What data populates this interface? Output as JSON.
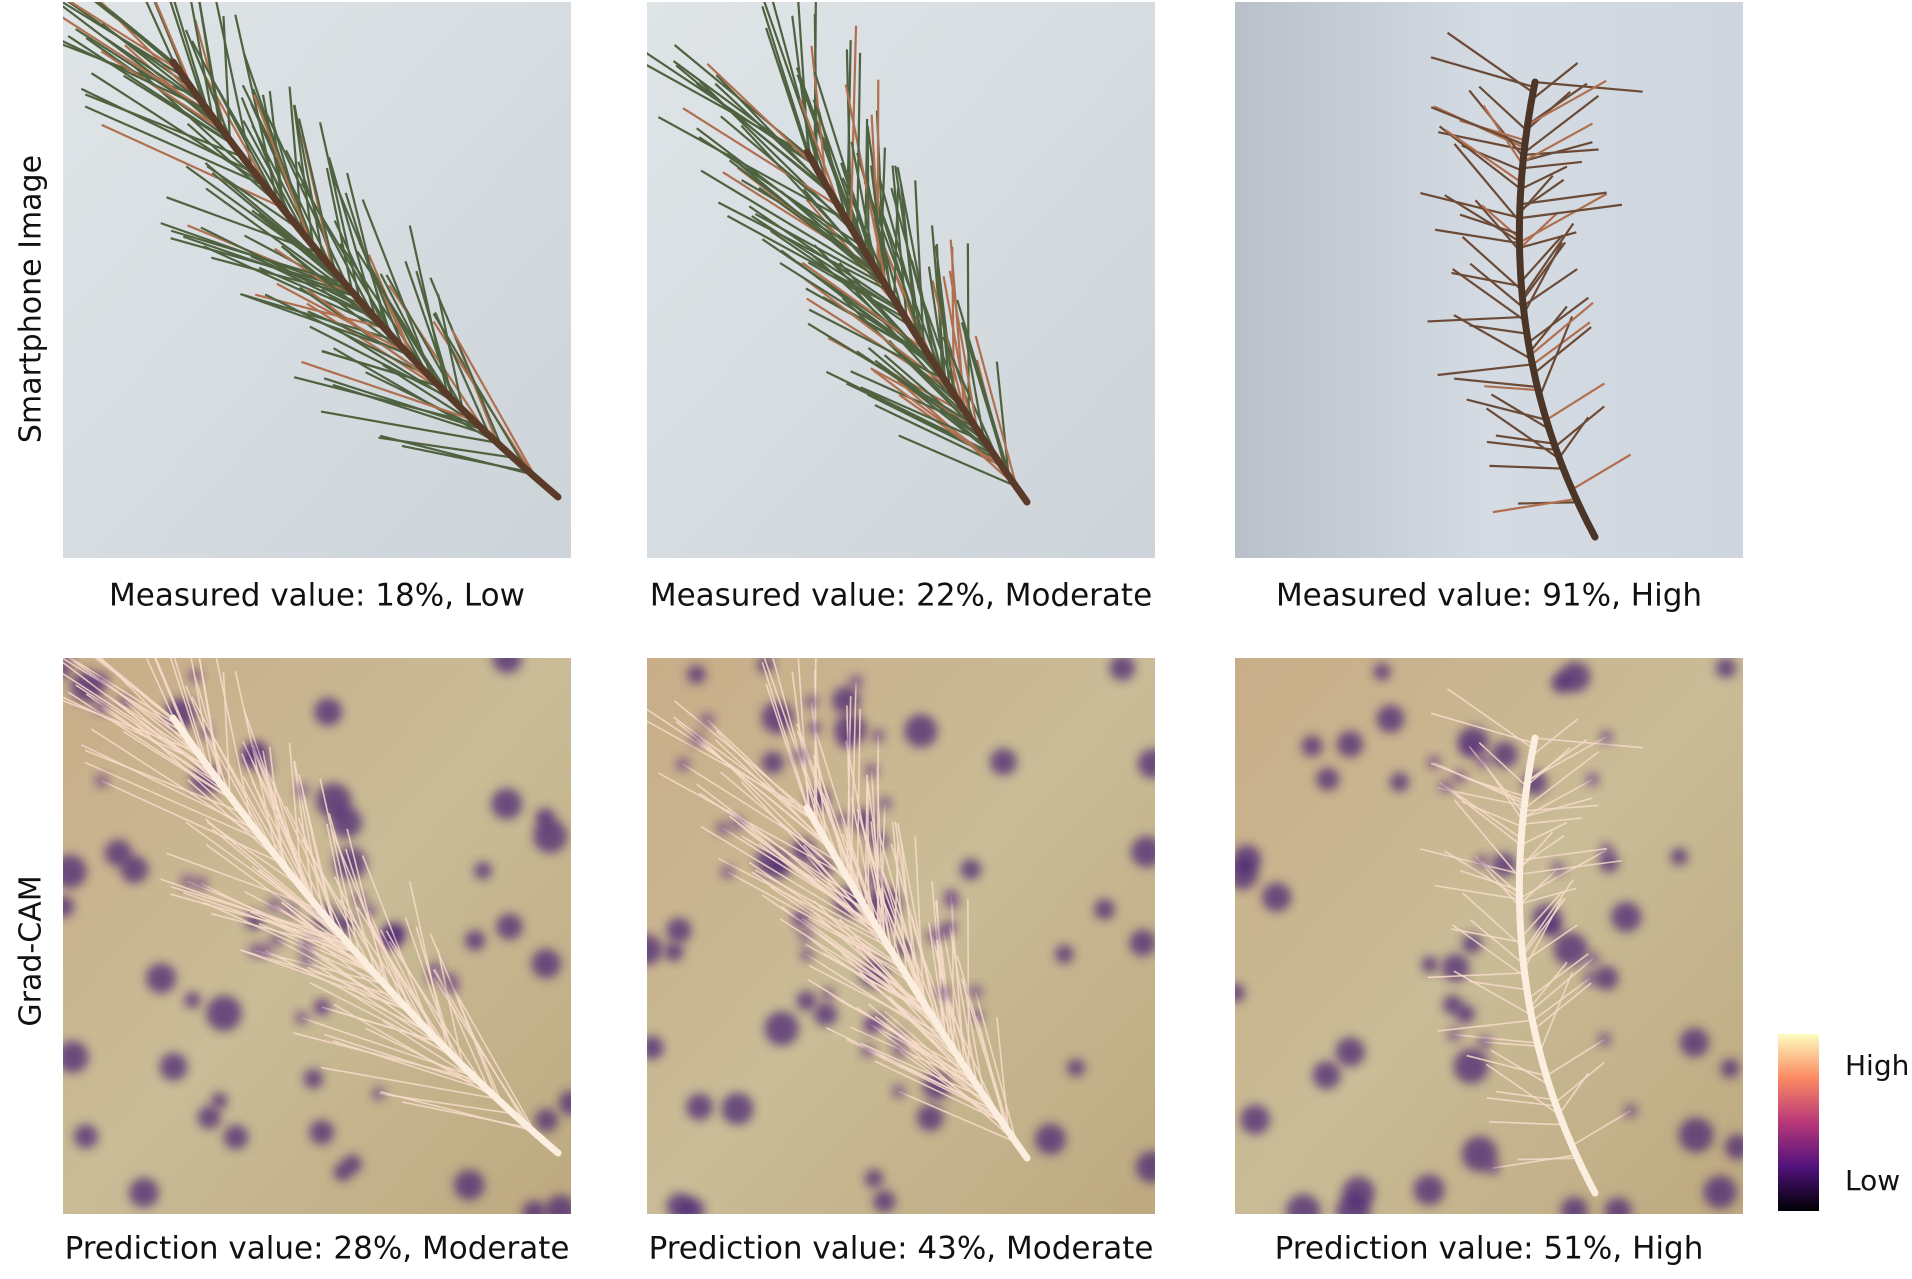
{
  "rows": [
    {
      "label": "Smartphone Image",
      "captions": [
        "Measured value: 18%, Low",
        "Measured value: 22%, Moderate",
        "Measured value: 91%, High"
      ]
    },
    {
      "label": "Grad-CAM",
      "captions": [
        "Prediction value: 28%, Moderate",
        "Prediction value: 43%, Moderate",
        "Prediction value: 51%, High"
      ]
    }
  ],
  "colorbar": {
    "high": "High",
    "low": "Low"
  }
}
